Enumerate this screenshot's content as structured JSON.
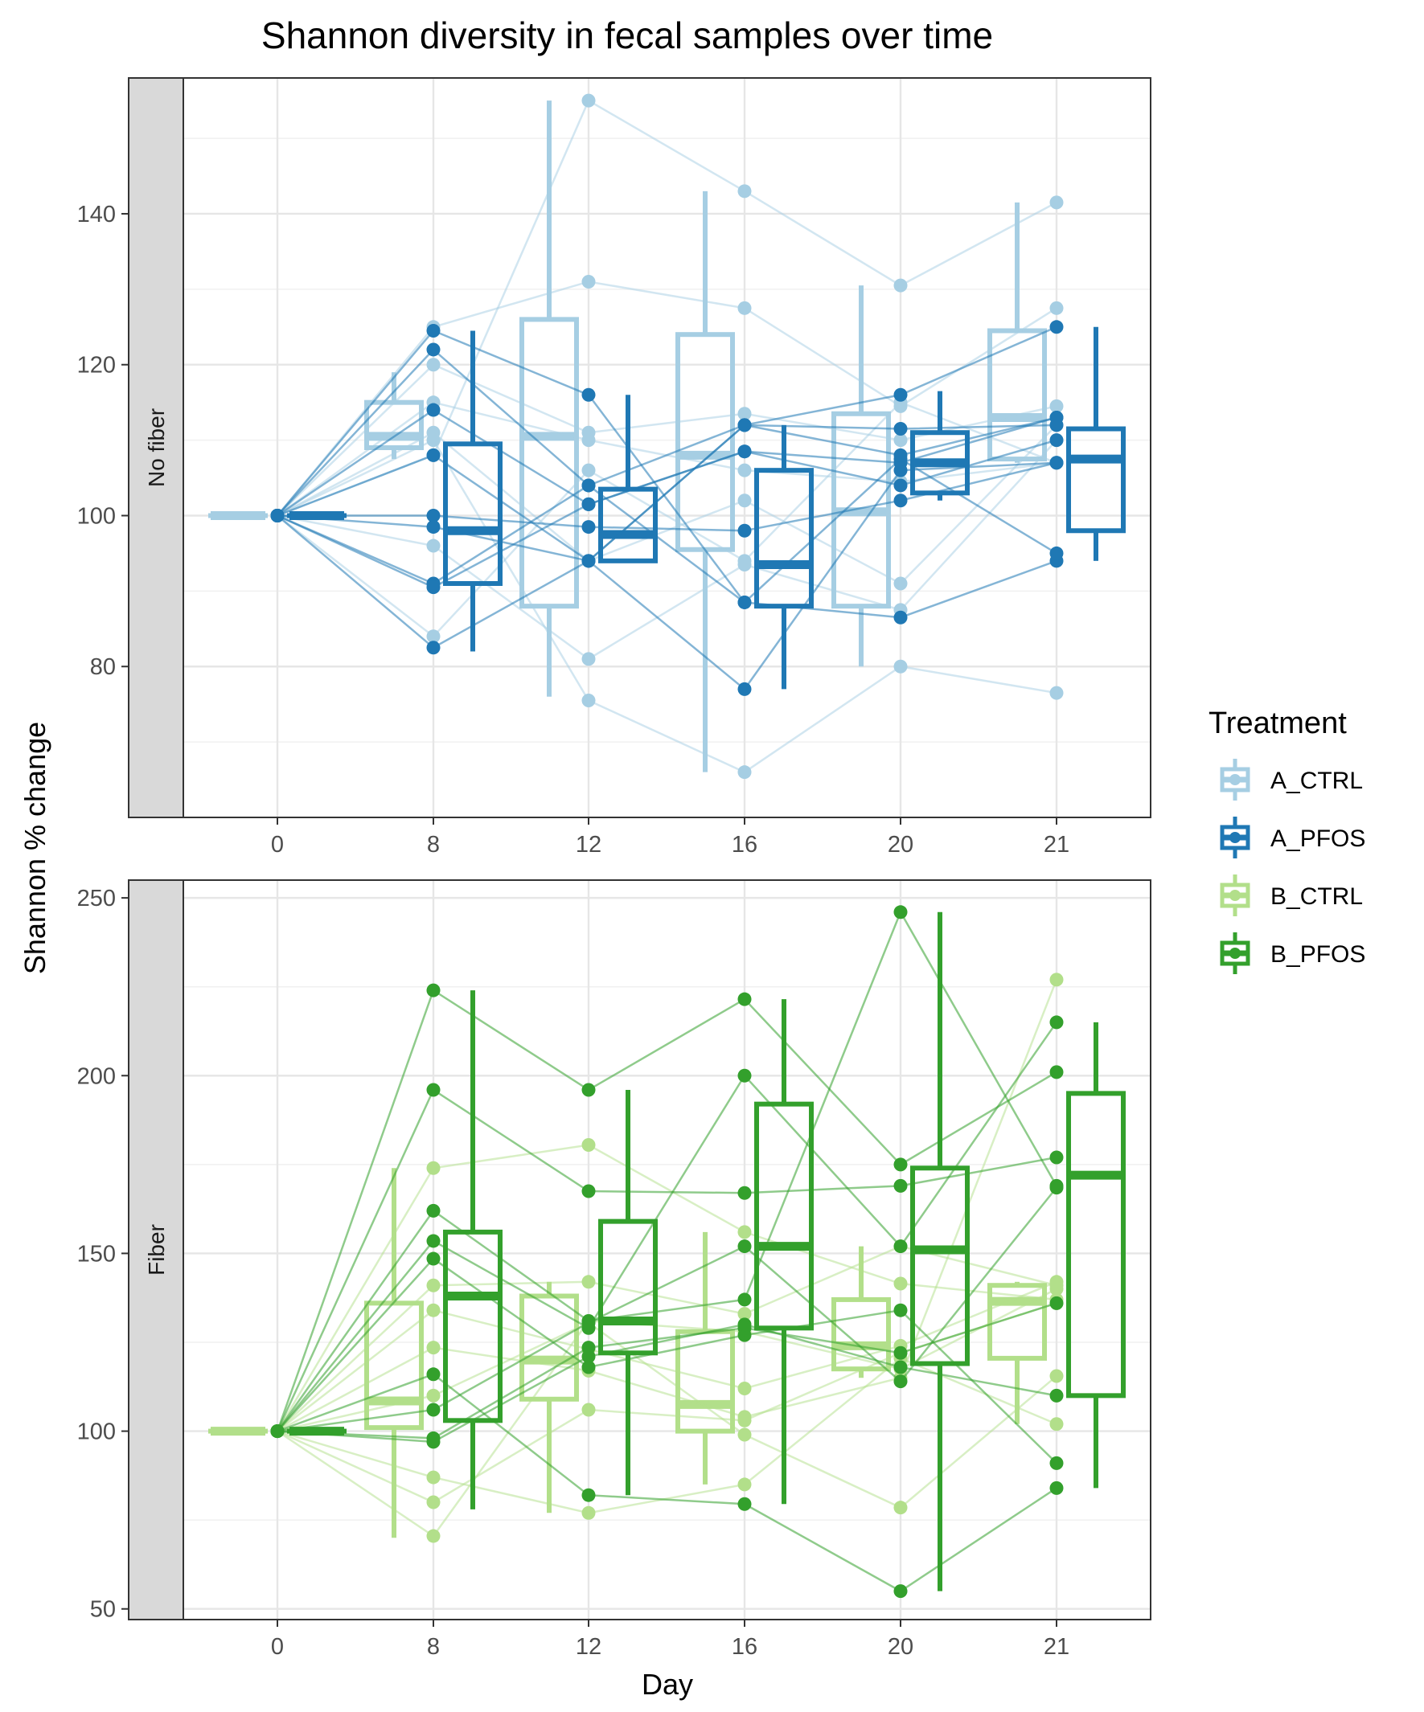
{
  "chart_data": {
    "type": "boxplot",
    "title": "Shannon diversity in fecal samples over time",
    "xlabel": "Day",
    "ylabel": "Shannon % change",
    "x_categories": [
      "0",
      "8",
      "12",
      "16",
      "20",
      "21"
    ],
    "grid": true,
    "legend": {
      "title": "Treatment",
      "position": "right",
      "entries": [
        {
          "name": "A_CTRL",
          "color": "#a6cee3"
        },
        {
          "name": "A_PFOS",
          "color": "#1f78b4"
        },
        {
          "name": "B_CTRL",
          "color": "#b2df8a"
        },
        {
          "name": "B_PFOS",
          "color": "#33a02c"
        }
      ]
    },
    "panels": [
      {
        "strip_label": "No fiber",
        "ylim": [
          60,
          158
        ],
        "yticks": [
          80,
          100,
          120,
          140
        ],
        "groups": [
          {
            "treatment": "A_CTRL",
            "boxes": [
              {
                "day": "0",
                "whisker_low": 100,
                "q1": 100,
                "median": 100,
                "q3": 100,
                "whisker_high": 100
              },
              {
                "day": "8",
                "whisker_low": 107.5,
                "q1": 109,
                "median": 110.5,
                "q3": 115,
                "whisker_high": 119
              },
              {
                "day": "12",
                "whisker_low": 76,
                "q1": 88,
                "median": 110.5,
                "q3": 126,
                "whisker_high": 155
              },
              {
                "day": "16",
                "whisker_low": 66,
                "q1": 95.5,
                "median": 108,
                "q3": 124,
                "whisker_high": 143
              },
              {
                "day": "20",
                "whisker_low": 80,
                "q1": 88,
                "median": 100.5,
                "q3": 113.5,
                "whisker_high": 130.5
              },
              {
                "day": "21",
                "whisker_low": 107,
                "q1": 107.5,
                "median": 113,
                "q3": 124.5,
                "whisker_high": 141.5
              }
            ],
            "lines": [
              [
                100,
                108,
                155,
                143,
                130.5,
                141.5
              ],
              [
                100,
                125,
                131,
                127.5,
                114.5,
                127.5
              ],
              [
                100,
                120,
                111,
                113.5,
                110,
                114.5
              ],
              [
                100,
                115,
                110,
                106,
                104.5,
                107
              ],
              [
                100,
                111,
                94,
                102,
                91,
                112
              ],
              [
                100,
                110,
                75.5,
                66,
                80,
                76.5
              ],
              [
                100,
                96,
                81,
                93.5,
                87.5,
                110
              ],
              [
                100,
                84,
                106,
                94,
                115,
                107
              ]
            ]
          },
          {
            "treatment": "A_PFOS",
            "boxes": [
              {
                "day": "0",
                "whisker_low": 100,
                "q1": 100,
                "median": 100,
                "q3": 100,
                "whisker_high": 100
              },
              {
                "day": "8",
                "whisker_low": 82,
                "q1": 91,
                "median": 98,
                "q3": 109.5,
                "whisker_high": 124.5
              },
              {
                "day": "12",
                "whisker_low": 94,
                "q1": 94,
                "median": 97.5,
                "q3": 103.5,
                "whisker_high": 116
              },
              {
                "day": "16",
                "whisker_low": 77,
                "q1": 88,
                "median": 93.5,
                "q3": 106,
                "whisker_high": 112
              },
              {
                "day": "20",
                "whisker_low": 102,
                "q1": 103,
                "median": 107,
                "q3": 111,
                "whisker_high": 116.5
              },
              {
                "day": "21",
                "whisker_low": 94,
                "q1": 98,
                "median": 107.5,
                "q3": 111.5,
                "whisker_high": 125
              }
            ],
            "lines": [
              [
                100,
                124.5,
                116,
                88.5,
                86.5,
                94
              ],
              [
                100,
                122,
                104,
                112,
                116,
                125
              ],
              [
                100,
                114,
                101.5,
                108.5,
                107,
                113
              ],
              [
                100,
                108,
                94,
                77,
                106,
                107
              ],
              [
                100,
                100,
                98.5,
                98,
                102,
                107
              ],
              [
                100,
                98.5,
                94,
                112,
                111.5,
                112
              ],
              [
                100,
                91,
                104,
                88.5,
                107.5,
                95
              ],
              [
                100,
                90.5,
                101.5,
                108.5,
                104,
                110
              ],
              [
                100,
                82.5,
                94,
                112,
                108,
                113
              ]
            ]
          }
        ]
      },
      {
        "strip_label": "Fiber",
        "ylim": [
          47,
          255
        ],
        "yticks": [
          50,
          100,
          150,
          200,
          250
        ],
        "groups": [
          {
            "treatment": "B_CTRL",
            "boxes": [
              {
                "day": "0",
                "whisker_low": 100,
                "q1": 100,
                "median": 100,
                "q3": 100,
                "whisker_high": 100
              },
              {
                "day": "8",
                "whisker_low": 70,
                "q1": 101,
                "median": 108.5,
                "q3": 136,
                "whisker_high": 174
              },
              {
                "day": "12",
                "whisker_low": 77,
                "q1": 109,
                "median": 120,
                "q3": 138,
                "whisker_high": 142
              },
              {
                "day": "16",
                "whisker_low": 85,
                "q1": 100,
                "median": 107.5,
                "q3": 128,
                "whisker_high": 156
              },
              {
                "day": "20",
                "whisker_low": 115,
                "q1": 117.5,
                "median": 124,
                "q3": 137,
                "whisker_high": 152
              },
              {
                "day": "21",
                "whisker_low": 102,
                "q1": 120.5,
                "median": 136.5,
                "q3": 141,
                "whisker_high": 142
              }
            ],
            "lines": [
              [
                100,
                174,
                180.5,
                156,
                141.5,
                137
              ],
              [
                100,
                141,
                142,
                133,
                152,
                141
              ],
              [
                100,
                134,
                123,
                112,
                124,
                142
              ],
              [
                100,
                123.5,
                117,
                104,
                115,
                227
              ],
              [
                100,
                110,
                130.5,
                99,
                78.5,
                115.5
              ],
              [
                100,
                87,
                77,
                85,
                120.5,
                102
              ],
              [
                100,
                80,
                106,
                103,
                122,
                136
              ],
              [
                100,
                70.5,
                131,
                128,
                117.5,
                140
              ]
            ]
          },
          {
            "treatment": "B_PFOS",
            "boxes": [
              {
                "day": "0",
                "whisker_low": 100,
                "q1": 100,
                "median": 100,
                "q3": 100,
                "whisker_high": 100
              },
              {
                "day": "8",
                "whisker_low": 78,
                "q1": 103,
                "median": 138,
                "q3": 156,
                "whisker_high": 224
              },
              {
                "day": "12",
                "whisker_low": 82,
                "q1": 122,
                "median": 131,
                "q3": 159,
                "whisker_high": 196
              },
              {
                "day": "16",
                "whisker_low": 79.5,
                "q1": 129,
                "median": 152,
                "q3": 192,
                "whisker_high": 221.5
              },
              {
                "day": "20",
                "whisker_low": 55,
                "q1": 119,
                "median": 151,
                "q3": 174,
                "whisker_high": 246
              },
              {
                "day": "21",
                "whisker_low": 84,
                "q1": 110,
                "median": 172,
                "q3": 195,
                "whisker_high": 215
              }
            ],
            "lines": [
              [
                100,
                224,
                196,
                221.5,
                175,
                201
              ],
              [
                100,
                196,
                167.5,
                167,
                169,
                177
              ],
              [
                100,
                162,
                131,
                137,
                246,
                169
              ],
              [
                100,
                153.5,
                129,
                200,
                152,
                215
              ],
              [
                100,
                148.5,
                118,
                127,
                134,
                91
              ],
              [
                100,
                116,
                82,
                79.5,
                55,
                84
              ],
              [
                100,
                106,
                130.5,
                152,
                114,
                168.5
              ],
              [
                100,
                98,
                123.5,
                129,
                122,
                136
              ],
              [
                100,
                97,
                121,
                130,
                118,
                110
              ]
            ]
          }
        ]
      }
    ]
  }
}
